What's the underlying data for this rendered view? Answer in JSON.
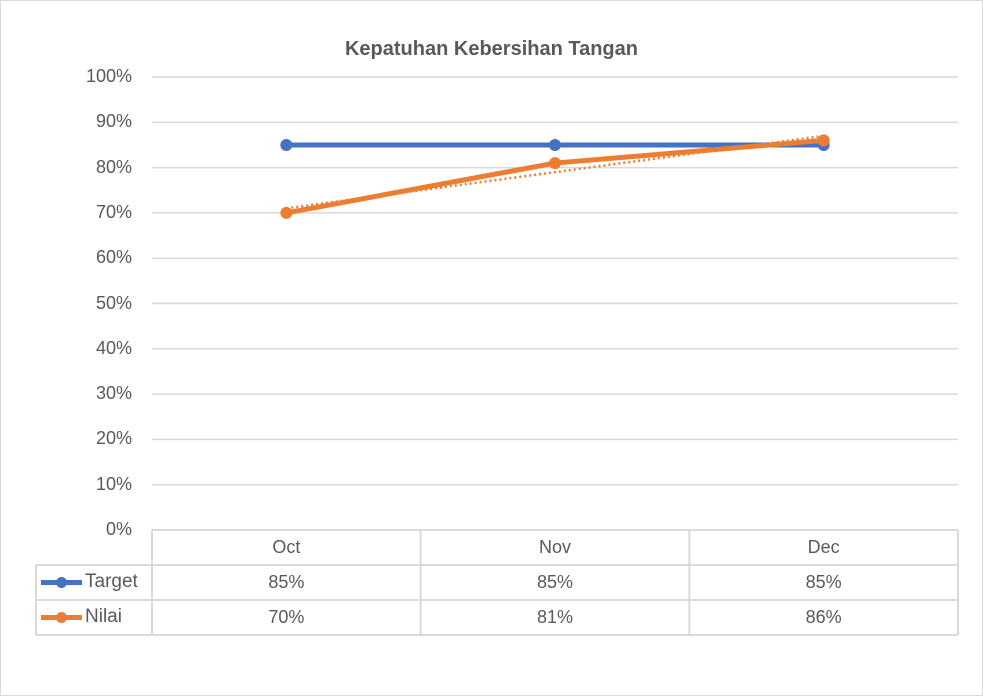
{
  "chart_data": {
    "type": "line",
    "title": "Kepatuhan Kebersihan Tangan",
    "categories": [
      "Oct",
      "Nov",
      "Dec"
    ],
    "series": [
      {
        "name": "Target",
        "values": [
          0.85,
          0.85,
          0.85
        ],
        "color": "#4472c4",
        "labels": [
          "85%",
          "85%",
          "85%"
        ]
      },
      {
        "name": "Nilai",
        "values": [
          0.7,
          0.81,
          0.86
        ],
        "color": "#ed7d31",
        "labels": [
          "70%",
          "81%",
          "86%"
        ],
        "trendline": "linear dotted"
      }
    ],
    "xlabel": "",
    "ylabel": "",
    "ylim": [
      0,
      1
    ],
    "yticks": [
      "0%",
      "10%",
      "20%",
      "30%",
      "40%",
      "50%",
      "60%",
      "70%",
      "80%",
      "90%",
      "100%"
    ],
    "grid": true,
    "legend_position": "data table"
  }
}
